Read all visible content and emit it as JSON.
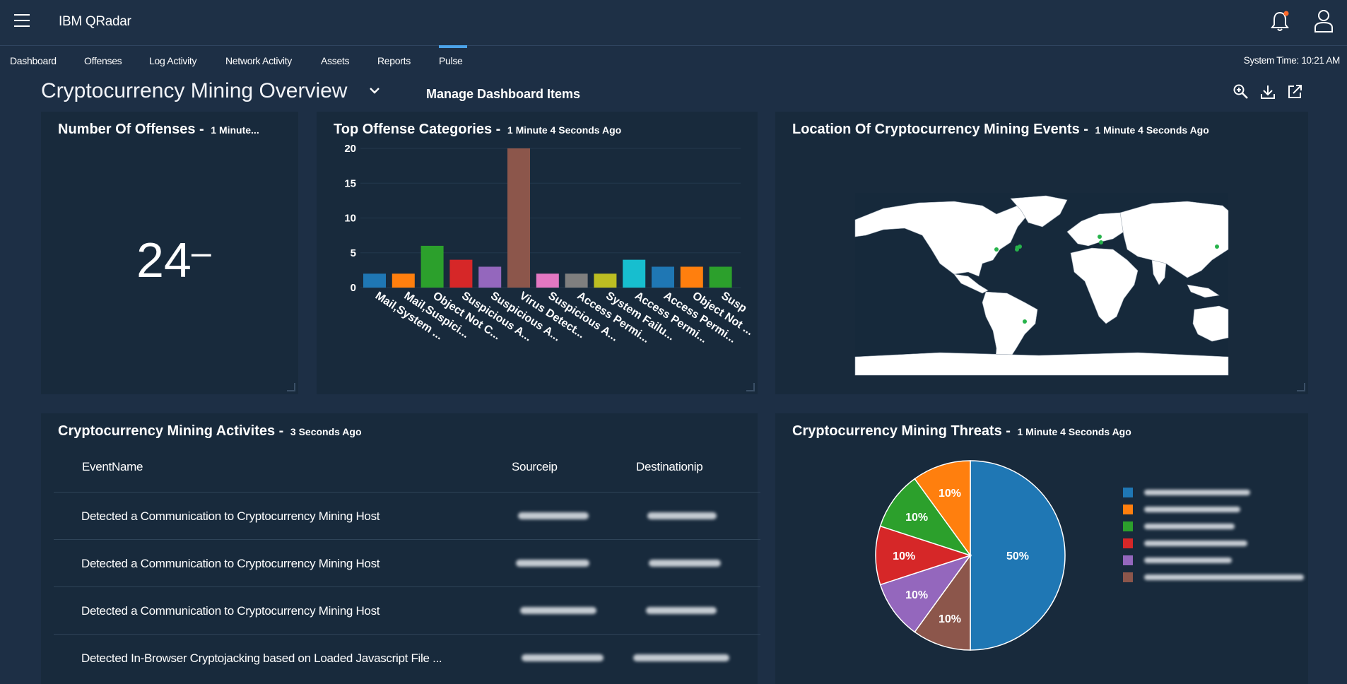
{
  "app": {
    "title": "IBM QRadar"
  },
  "nav": {
    "items": [
      {
        "label": "Dashboard"
      },
      {
        "label": "Offenses"
      },
      {
        "label": "Log Activity"
      },
      {
        "label": "Network Activity"
      },
      {
        "label": "Assets"
      },
      {
        "label": "Reports"
      },
      {
        "label": "Pulse"
      }
    ],
    "active": "Pulse",
    "system_time": "System Time: 10:21 AM"
  },
  "dashboard": {
    "title": "Cryptocurrency Mining Overview",
    "manage_label": "Manage Dashboard Items",
    "icons": [
      "zoom-in-icon",
      "download-icon",
      "launch-icon"
    ]
  },
  "panels": {
    "offenses": {
      "title": "Number Of Offenses -",
      "ago": "1 Minute...",
      "value": "24",
      "trend": "–"
    },
    "categories": {
      "title": "Top Offense Categories -",
      "ago": "1 Minute 4 Seconds Ago"
    },
    "location": {
      "title": "Location Of Cryptocurrency Mining Events -",
      "ago": "1 Minute 4 Seconds Ago"
    },
    "activities": {
      "title": "Cryptocurrency Mining Activites -",
      "ago": "3 Seconds Ago",
      "columns": [
        "EventName",
        "Sourceip",
        "Destinationip"
      ],
      "rows": [
        {
          "event": "Detected a Communication to Cryptocurrency Mining Host"
        },
        {
          "event": "Detected a Communication to Cryptocurrency Mining Host"
        },
        {
          "event": "Detected a Communication to Cryptocurrency Mining Host"
        },
        {
          "event": "Detected In-Browser Cryptojacking based on Loaded Javascript File ..."
        }
      ]
    },
    "threats": {
      "title": "Cryptocurrency Mining Threats -",
      "ago": "1 Minute 4 Seconds Ago"
    }
  },
  "chart_data": [
    {
      "type": "bar",
      "categories": [
        "Mail,System ...",
        "Mail,Suspici...",
        "Object Not C...",
        "Suspicious A...",
        "Suspicious A...",
        "Virus Detect...",
        "Suspicious A...",
        "Access Permi...",
        "System Failu...",
        "Access Permi...",
        "Access Permi...",
        "Object Not ...",
        "Susp"
      ],
      "values": [
        2,
        2,
        6,
        4,
        3,
        20,
        2,
        2,
        2,
        4,
        3,
        3,
        3
      ],
      "colors": [
        "#1f77b4",
        "#ff7f0e",
        "#2ca02c",
        "#d62728",
        "#9467bd",
        "#8c564b",
        "#e377c2",
        "#7f7f7f",
        "#bcbd22",
        "#17becf",
        "#1f77b4",
        "#ff7f0e",
        "#2ca02c"
      ],
      "yticks": [
        0,
        5,
        10,
        15,
        20
      ],
      "ylim": [
        0,
        20
      ]
    },
    {
      "type": "pie",
      "slices": [
        {
          "label": "50%",
          "value": 50,
          "color": "#1f77b4"
        },
        {
          "label": "10%",
          "value": 10,
          "color": "#8c564b"
        },
        {
          "label": "10%",
          "value": 10,
          "color": "#9467bd"
        },
        {
          "label": "10%",
          "value": 10,
          "color": "#d62728"
        },
        {
          "label": "10%",
          "value": 10,
          "color": "#2ca02c"
        },
        {
          "label": "10%",
          "value": 10,
          "color": "#ff7f0e"
        }
      ],
      "legend_colors": [
        "#1f77b4",
        "#ff7f0e",
        "#2ca02c",
        "#d62728",
        "#9467bd",
        "#8c564b"
      ]
    }
  ]
}
